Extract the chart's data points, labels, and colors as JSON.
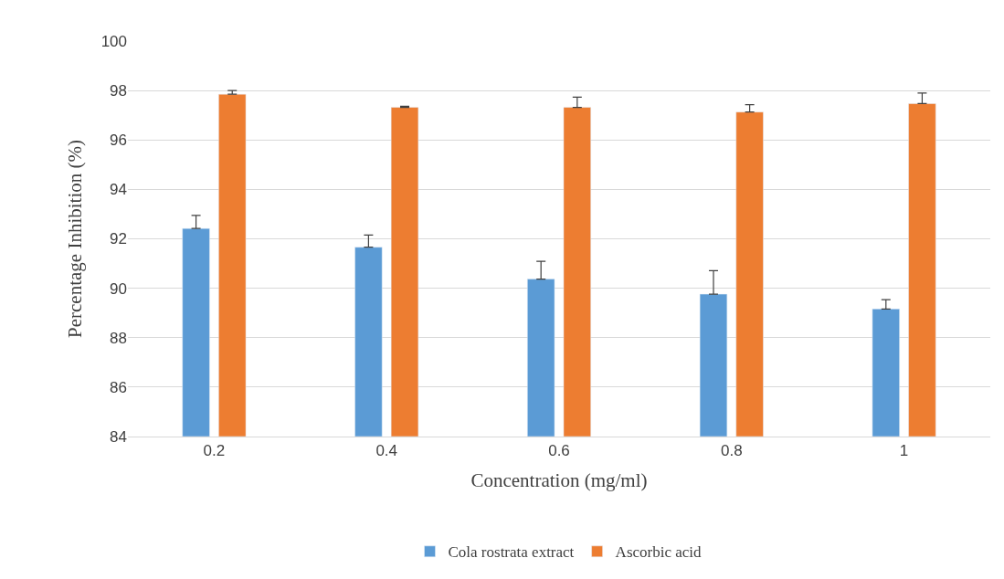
{
  "chart_data": {
    "type": "bar",
    "xlabel": "Concentration (mg/ml)",
    "ylabel": "Percentage Inhibition (%)",
    "categories": [
      "0.2",
      "0.4",
      "0.6",
      "0.8",
      "1"
    ],
    "series": [
      {
        "name": "Cola rostrata extract",
        "color": "#5b9bd5",
        "values": [
          92.42,
          91.66,
          90.37,
          89.76,
          89.16
        ],
        "errors": [
          [
            92.42,
            92.95
          ],
          [
            91.66,
            92.15
          ],
          [
            90.37,
            91.09
          ],
          [
            89.76,
            90.71
          ],
          [
            89.16,
            89.54
          ]
        ]
      },
      {
        "name": "Ascorbic acid",
        "color": "#ed7d31",
        "values": [
          97.85,
          97.32,
          97.32,
          97.13,
          97.47
        ],
        "errors": [
          [
            97.85,
            98.0
          ],
          [
            97.32,
            97.36
          ],
          [
            97.32,
            97.73
          ],
          [
            97.13,
            97.43
          ],
          [
            97.47,
            97.9
          ]
        ]
      }
    ],
    "ylim": [
      84,
      100
    ],
    "yticks": [
      84,
      86,
      88,
      90,
      92,
      94,
      96,
      98,
      100
    ],
    "grid": "y",
    "legend": "bottom"
  }
}
